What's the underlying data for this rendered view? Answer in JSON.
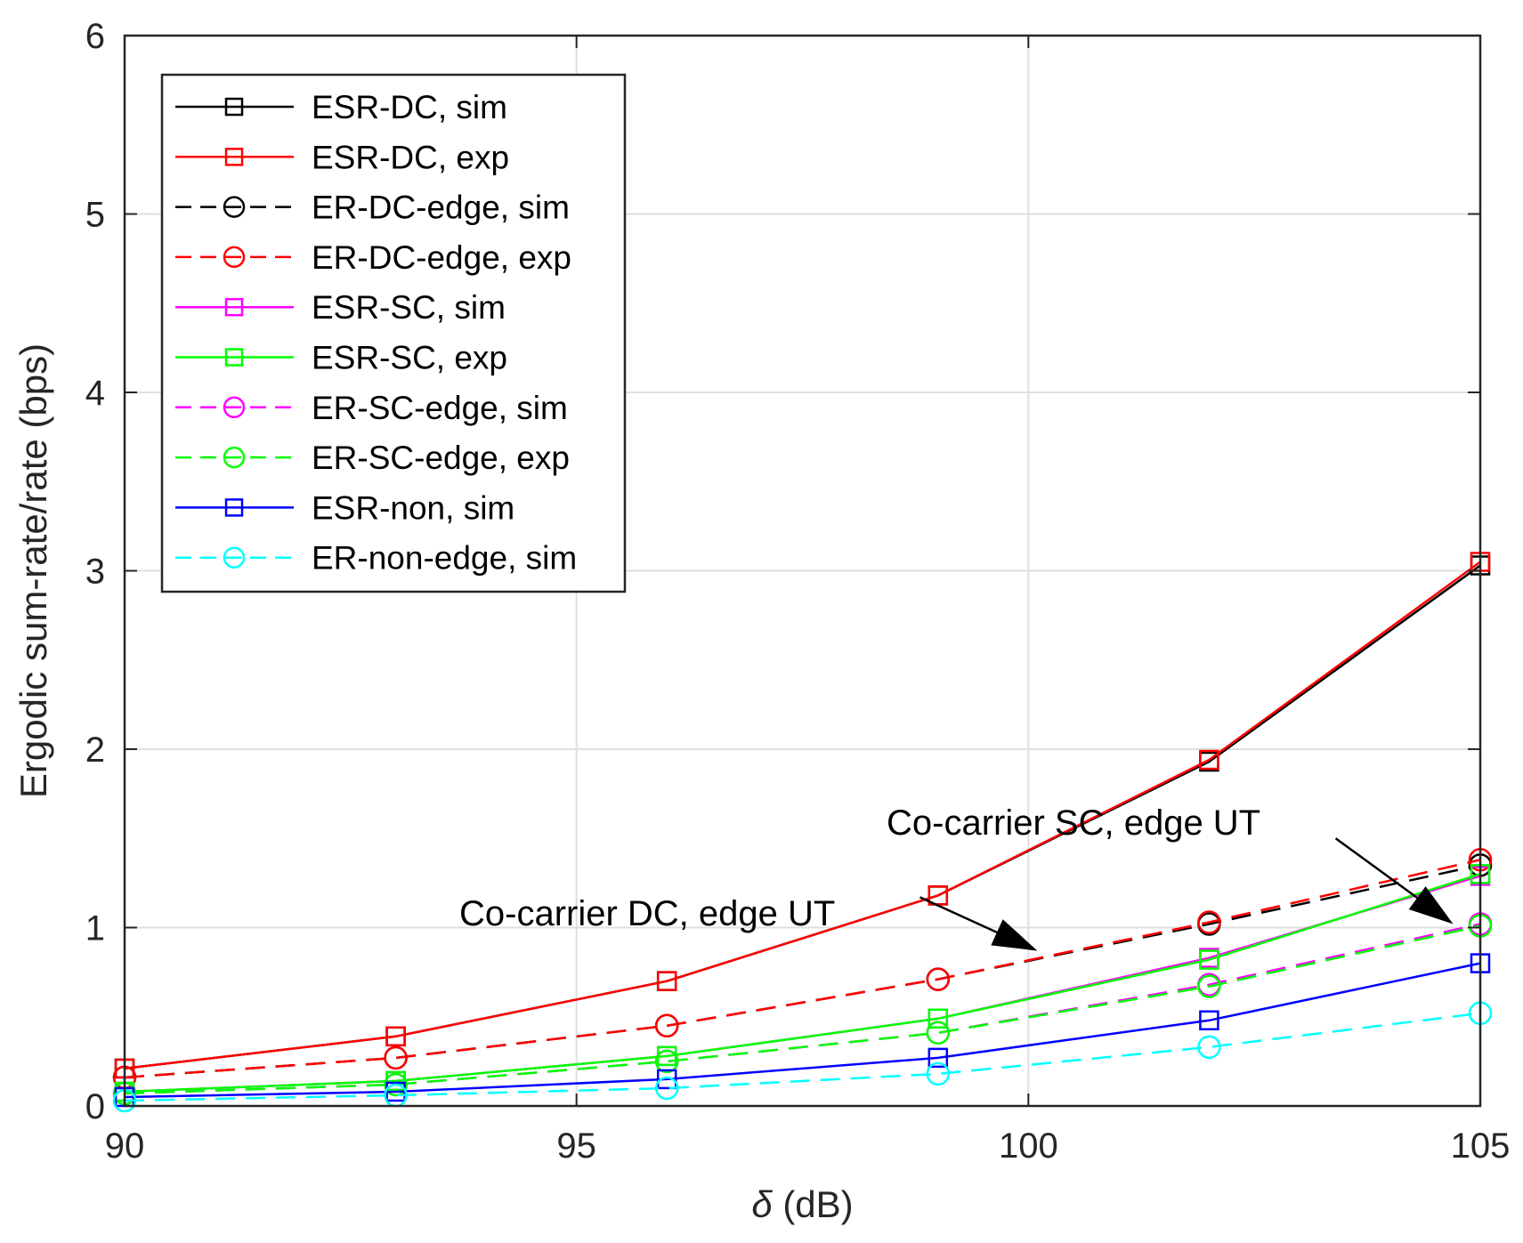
{
  "chart_data": {
    "type": "line",
    "title": "",
    "xlabel_symbol": "δ",
    "xlabel_unit": " (dB)",
    "ylabel": "Ergodic sum-rate/rate (bps)",
    "xlim": [
      90,
      105
    ],
    "ylim": [
      0,
      6
    ],
    "xticks": [
      90,
      95,
      100,
      105
    ],
    "yticks": [
      0,
      1,
      2,
      3,
      4,
      5,
      6
    ],
    "grid": true,
    "legend_position": "top-left",
    "x": [
      90,
      93,
      96,
      99,
      102,
      105
    ],
    "series": [
      {
        "name": "ESR-DC, sim",
        "color": "#000000",
        "dash": "solid",
        "marker": "square",
        "values": [
          0.21,
          0.39,
          0.7,
          1.18,
          1.93,
          3.03
        ]
      },
      {
        "name": "ESR-DC, exp",
        "color": "#ff0000",
        "dash": "solid",
        "marker": "square",
        "values": [
          0.21,
          0.39,
          0.7,
          1.18,
          1.94,
          3.05
        ]
      },
      {
        "name": "ER-DC-edge, sim",
        "color": "#000000",
        "dash": "dashed",
        "marker": "circle",
        "values": [
          0.16,
          0.27,
          0.45,
          0.71,
          1.02,
          1.35
        ]
      },
      {
        "name": "ER-DC-edge, exp",
        "color": "#ff0000",
        "dash": "dashed",
        "marker": "circle",
        "values": [
          0.16,
          0.27,
          0.45,
          0.71,
          1.03,
          1.38
        ]
      },
      {
        "name": "ESR-SC, sim",
        "color": "#ff00ff",
        "dash": "solid",
        "marker": "square",
        "values": [
          0.08,
          0.14,
          0.28,
          0.49,
          0.83,
          1.29
        ]
      },
      {
        "name": "ESR-SC, exp",
        "color": "#00ff00",
        "dash": "solid",
        "marker": "square",
        "values": [
          0.08,
          0.14,
          0.28,
          0.49,
          0.82,
          1.3
        ]
      },
      {
        "name": "ER-SC-edge, sim",
        "color": "#ff00ff",
        "dash": "dashed",
        "marker": "circle",
        "values": [
          0.07,
          0.12,
          0.25,
          0.41,
          0.68,
          1.02
        ]
      },
      {
        "name": "ER-SC-edge, exp",
        "color": "#00ff00",
        "dash": "dashed",
        "marker": "circle",
        "values": [
          0.07,
          0.12,
          0.25,
          0.41,
          0.67,
          1.01
        ]
      },
      {
        "name": "ESR-non, sim",
        "color": "#0000ff",
        "dash": "solid",
        "marker": "square",
        "values": [
          0.05,
          0.08,
          0.15,
          0.27,
          0.48,
          0.8
        ]
      },
      {
        "name": "ER-non-edge, sim",
        "color": "#00ffff",
        "dash": "dashed",
        "marker": "circle",
        "values": [
          0.03,
          0.06,
          0.1,
          0.18,
          0.33,
          0.52
        ]
      }
    ],
    "annotations": [
      {
        "text": "Co-carrier DC, edge UT",
        "arrow_from": [
          98.8,
          1.17
        ],
        "arrow_to": [
          100.1,
          0.87
        ]
      },
      {
        "text": "Co-carrier SC, edge UT",
        "arrow_from": [
          103.4,
          1.5
        ],
        "arrow_to": [
          104.7,
          1.02
        ]
      }
    ]
  }
}
